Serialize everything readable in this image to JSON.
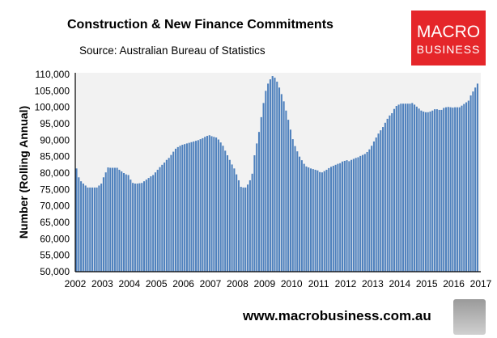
{
  "chart_data": {
    "type": "bar",
    "title": "Construction & New Finance Commitments",
    "subtitle": "Source: Australian  Bureau of Statistics",
    "xlabel": "",
    "ylabel": "Number (Rolling Annual)",
    "ylim": [
      50000,
      110000
    ],
    "yticks": [
      "50,000",
      "55,000",
      "60,000",
      "65,000",
      "70,000",
      "75,000",
      "80,000",
      "85,000",
      "90,000",
      "95,000",
      "100,000",
      "105,000",
      "110,000"
    ],
    "xticks": [
      "2002",
      "2003",
      "2004",
      "2005",
      "2006",
      "2007",
      "2008",
      "2009",
      "2010",
      "2011",
      "2012",
      "2013",
      "2014",
      "2015",
      "2016",
      "2017"
    ],
    "frequency": "monthly",
    "start": "2002-01",
    "grid": false,
    "bar_color": "#4f81bd",
    "plot_background": "#f2f2f2",
    "values": [
      81400,
      78700,
      77500,
      76800,
      76200,
      75600,
      75600,
      75600,
      75600,
      75600,
      76200,
      76800,
      78700,
      80200,
      81700,
      81600,
      81600,
      81600,
      81600,
      81000,
      80500,
      80000,
      79600,
      79400,
      78000,
      77000,
      76800,
      76800,
      76900,
      77000,
      77500,
      78000,
      78500,
      79000,
      79400,
      80200,
      81000,
      81800,
      82500,
      83200,
      84000,
      84600,
      85500,
      86500,
      87400,
      87900,
      88300,
      88600,
      88800,
      89000,
      89200,
      89400,
      89600,
      89800,
      90000,
      90300,
      90600,
      91000,
      91300,
      91500,
      91200,
      91000,
      90800,
      90200,
      89300,
      88300,
      86800,
      85400,
      84000,
      82600,
      81400,
      79600,
      77800,
      75800,
      75600,
      75600,
      76500,
      77800,
      79800,
      85400,
      89000,
      92500,
      97000,
      101300,
      105000,
      107200,
      108500,
      109500,
      109000,
      107800,
      106000,
      104000,
      101800,
      99000,
      96200,
      93200,
      90300,
      88200,
      86600,
      85000,
      83900,
      82800,
      82000,
      81700,
      81400,
      81200,
      81000,
      80800,
      80300,
      80200,
      80600,
      81000,
      81500,
      81900,
      82200,
      82500,
      82800,
      83000,
      83500,
      83700,
      83900,
      83600,
      84000,
      84300,
      84600,
      84800,
      85200,
      85500,
      85800,
      86400,
      87200,
      88300,
      89600,
      90800,
      92000,
      93000,
      94000,
      95300,
      96500,
      97500,
      98200,
      99500,
      100400,
      100800,
      101100,
      101100,
      101100,
      101100,
      101100,
      101300,
      100800,
      100200,
      99600,
      99000,
      98700,
      98500,
      98500,
      98700,
      99000,
      99400,
      99400,
      99200,
      99200,
      99800,
      100000,
      100100,
      100000,
      99900,
      100000,
      100000,
      100000,
      100500,
      101000,
      101500,
      102000,
      103600,
      104800,
      106000,
      107200
    ]
  },
  "logo": {
    "line1": "MACRO",
    "line2": "BUSINESS"
  },
  "footer": {
    "url": "www.macrobusiness.com.au"
  },
  "colors": {
    "logo_red": "#e5262a"
  }
}
